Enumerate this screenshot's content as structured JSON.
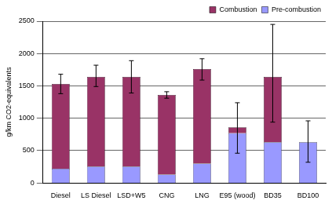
{
  "chart_data": {
    "type": "bar",
    "stacked": true,
    "y_label": "g/km CO2-equivalents",
    "categories": [
      "Diesel",
      "LS Diesel",
      "LSD+W5",
      "CNG",
      "LNG",
      "E95 (wood)",
      "BD35",
      "BD100"
    ],
    "series": [
      {
        "name": "Pre-combustion",
        "color": "#9999ff",
        "values": [
          220,
          255,
          255,
          130,
          300,
          770,
          630,
          630
        ]
      },
      {
        "name": "Combustion",
        "color": "#993366",
        "values": [
          1310,
          1385,
          1385,
          1230,
          1460,
          90,
          1010,
          0
        ]
      }
    ],
    "error_low": [
      1380,
      1490,
      1390,
      1310,
      1590,
      460,
      940,
      320
    ],
    "error_high": [
      1680,
      1820,
      1890,
      1410,
      1920,
      1240,
      2450,
      960
    ],
    "ylim": [
      0,
      2500
    ],
    "yticks": [
      0,
      500,
      1000,
      1500,
      2000,
      2500
    ],
    "grid": true,
    "legend": "top-right"
  }
}
